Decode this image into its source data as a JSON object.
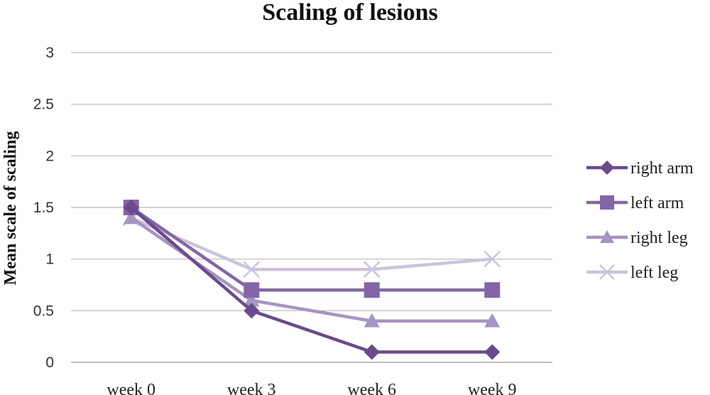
{
  "chart_data": {
    "type": "line",
    "title": "Scaling of lesions",
    "xlabel": "",
    "ylabel": "Mean scale of scaling",
    "categories": [
      "week 0",
      "week 3",
      "week 6",
      "week 9"
    ],
    "ylim": [
      0,
      3
    ],
    "yticks": [
      "0",
      "0.5",
      "1",
      "1.5",
      "2",
      "2.5",
      "3"
    ],
    "grid": true,
    "legend_position": "right",
    "series": [
      {
        "name": "right arm",
        "values": [
          1.5,
          0.5,
          0.1,
          0.1
        ],
        "color": "#6a4a8c",
        "marker": "diamond"
      },
      {
        "name": "left arm",
        "values": [
          1.5,
          0.7,
          0.7,
          0.7
        ],
        "color": "#8466a8",
        "marker": "square"
      },
      {
        "name": "right leg",
        "values": [
          1.4,
          0.6,
          0.4,
          0.4
        ],
        "color": "#a594c4",
        "marker": "triangle"
      },
      {
        "name": "left leg",
        "values": [
          1.4,
          0.9,
          0.9,
          1.0
        ],
        "color": "#ccc4de",
        "marker": "x"
      }
    ]
  }
}
